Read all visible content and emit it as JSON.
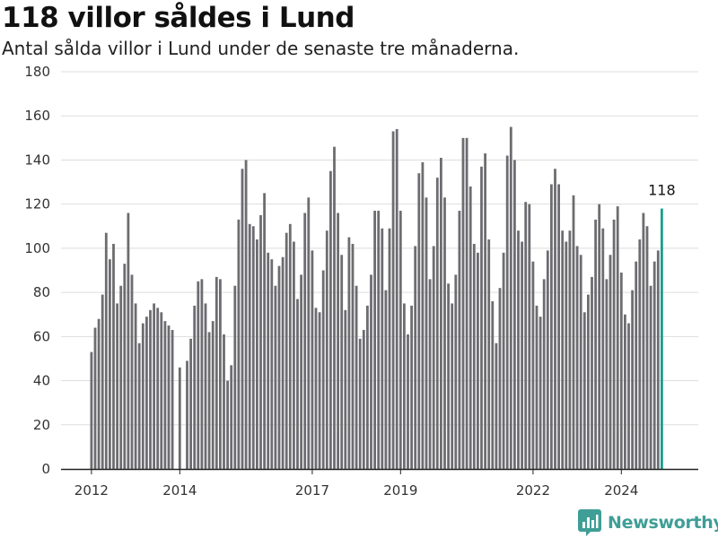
{
  "title": "118 villor såldes i Lund",
  "subtitle": "Antal sålda villor i Lund under de senaste tre månaderna.",
  "brand": "Newsworthy",
  "colors": {
    "bar": "#6d6c70",
    "highlight": "#1a9e8f",
    "grid": "#dddddd",
    "axis": "#222222",
    "brand": "#3f9e96"
  },
  "chart_data": {
    "type": "bar",
    "title": "118 villor såldes i Lund",
    "subtitle": "Antal sålda villor i Lund under de senaste tre månaderna.",
    "xlabel": "",
    "ylabel": "",
    "ylim": [
      0,
      180
    ],
    "yticks": [
      0,
      20,
      40,
      60,
      80,
      100,
      120,
      140,
      160,
      180
    ],
    "xticks": [
      "2012",
      "2014",
      "2017",
      "2019",
      "2022",
      "2024"
    ],
    "xtick_positions": [
      2012,
      2014,
      2017,
      2019,
      2022,
      2024
    ],
    "grid": true,
    "x_start": 2012,
    "x_step": 0.08333,
    "values": [
      53,
      64,
      68,
      79,
      107,
      95,
      102,
      75,
      83,
      93,
      116,
      88,
      75,
      57,
      66,
      69,
      72,
      75,
      73,
      71,
      67,
      65,
      63,
      0,
      46,
      0,
      49,
      59,
      74,
      85,
      86,
      75,
      62,
      67,
      87,
      86,
      61,
      40,
      47,
      83,
      113,
      136,
      140,
      111,
      110,
      104,
      115,
      125,
      98,
      95,
      83,
      92,
      96,
      107,
      111,
      103,
      77,
      88,
      116,
      123,
      99,
      73,
      71,
      90,
      108,
      135,
      146,
      116,
      97,
      72,
      105,
      102,
      83,
      59,
      63,
      74,
      88,
      117,
      117,
      109,
      81,
      109,
      153,
      154,
      117,
      75,
      61,
      74,
      101,
      134,
      139,
      123,
      86,
      101,
      132,
      141,
      123,
      84,
      75,
      88,
      117,
      150,
      150,
      128,
      102,
      98,
      137,
      143,
      104,
      76,
      57,
      82,
      98,
      142,
      155,
      140,
      108,
      103,
      121,
      120,
      94,
      74,
      69,
      86,
      99,
      129,
      136,
      129,
      108,
      103,
      108,
      124,
      101,
      97,
      71,
      79,
      87,
      113,
      120,
      109,
      86,
      97,
      113,
      119,
      89,
      70,
      66,
      81,
      94,
      104,
      116,
      110,
      83,
      94,
      99,
      118
    ],
    "highlight_last": true,
    "annotations": [
      {
        "label": "118"
      }
    ]
  }
}
